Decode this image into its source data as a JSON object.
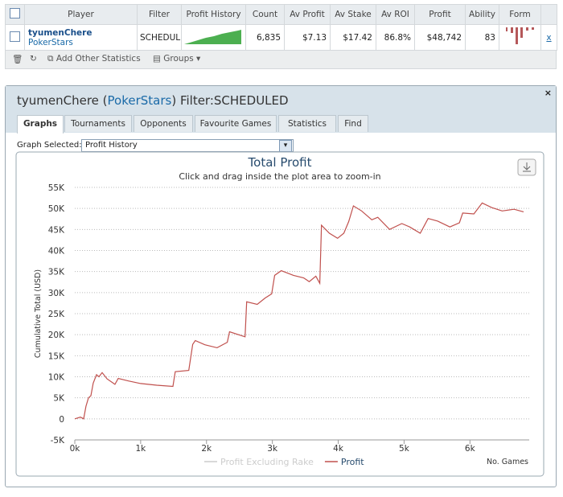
{
  "table": {
    "headers": [
      "Player",
      "Filter",
      "Profit History",
      "Count",
      "Av Profit",
      "Av Stake",
      "Av ROI",
      "Profit",
      "Ability",
      "Form"
    ],
    "row": {
      "player": "tyumenChere",
      "site": "PokerStars",
      "filter": "SCHEDUL",
      "count": "6,835",
      "av_profit": "$7.13",
      "av_stake": "$17.42",
      "av_roi": "86.8%",
      "profit": "$48,742",
      "ability": "83",
      "remove": "x"
    }
  },
  "toolbar": {
    "add": "Add Other Statistics",
    "groups": "Groups"
  },
  "panel": {
    "title_player": "tyumenChere (",
    "title_site": "PokerStars",
    "title_filter": ") Filter:SCHEDULED",
    "tabs": [
      "Graphs",
      "Tournaments",
      "Opponents",
      "Favourite Games",
      "Statistics",
      "Find"
    ],
    "graph_selected_label": "Graph Selected:",
    "graph_selected": "Profit History"
  },
  "chart_data": {
    "type": "line",
    "title": "Total Profit",
    "subtitle": "Click and drag inside the plot area to zoom-in",
    "y_label": "Cumulative Total (USD)",
    "x_label": "No. Games",
    "xlim": [
      0,
      6900
    ],
    "xticks": [
      {
        "value": 0,
        "label": "0k"
      },
      {
        "value": 1000,
        "label": "1k"
      },
      {
        "value": 2000,
        "label": "2k"
      },
      {
        "value": 3000,
        "label": "3k"
      },
      {
        "value": 4000,
        "label": "4k"
      },
      {
        "value": 5000,
        "label": "5k"
      },
      {
        "value": 6000,
        "label": "6k"
      }
    ],
    "ylim": [
      -5000,
      55000
    ],
    "yticks": [
      {
        "value": -5000,
        "label": "-5K"
      },
      {
        "value": 0,
        "label": "0"
      },
      {
        "value": 5000,
        "label": "5K"
      },
      {
        "value": 10000,
        "label": "10K"
      },
      {
        "value": 15000,
        "label": "15K"
      },
      {
        "value": 20000,
        "label": "20K"
      },
      {
        "value": 25000,
        "label": "25K"
      },
      {
        "value": 30000,
        "label": "30K"
      },
      {
        "value": 35000,
        "label": "35K"
      },
      {
        "value": 40000,
        "label": "40K"
      },
      {
        "value": 45000,
        "label": "45K"
      },
      {
        "value": 50000,
        "label": "50K"
      },
      {
        "value": 55000,
        "label": "55K"
      }
    ],
    "grid": true,
    "series": [
      {
        "name": "Profit Excluding Rake",
        "color": "#cccccc",
        "visible": false
      },
      {
        "name": "Profit",
        "color": "#c0504d",
        "visible": true,
        "x": [
          0,
          85,
          134,
          170,
          207,
          244,
          280,
          330,
          366,
          415,
          490,
          610,
          660,
          815,
          1000,
          1245,
          1490,
          1525,
          1730,
          1790,
          1830,
          1975,
          2160,
          2315,
          2350,
          2585,
          2610,
          2770,
          2890,
          2990,
          3035,
          3135,
          3320,
          3475,
          3560,
          3660,
          3720,
          3745,
          3865,
          3990,
          4085,
          4160,
          4230,
          4355,
          4510,
          4600,
          4780,
          4965,
          5085,
          5245,
          5365,
          5510,
          5695,
          5840,
          5890,
          6060,
          6185,
          6330,
          6490,
          6670,
          6815
        ],
        "values": [
          0,
          400,
          0,
          3000,
          5000,
          5500,
          8500,
          10500,
          10000,
          11000,
          9500,
          8200,
          9600,
          9000,
          8400,
          8000,
          7700,
          11200,
          11500,
          17700,
          18600,
          17600,
          16900,
          18200,
          20700,
          19500,
          27800,
          27200,
          28700,
          29700,
          34100,
          35200,
          34100,
          33500,
          32600,
          33900,
          32200,
          46000,
          44100,
          42900,
          44100,
          46900,
          50600,
          49400,
          47300,
          47900,
          45000,
          46400,
          45600,
          44100,
          47600,
          47000,
          45600,
          46600,
          48900,
          48700,
          51300,
          50200,
          49400,
          49800,
          49200
        ]
      }
    ]
  }
}
